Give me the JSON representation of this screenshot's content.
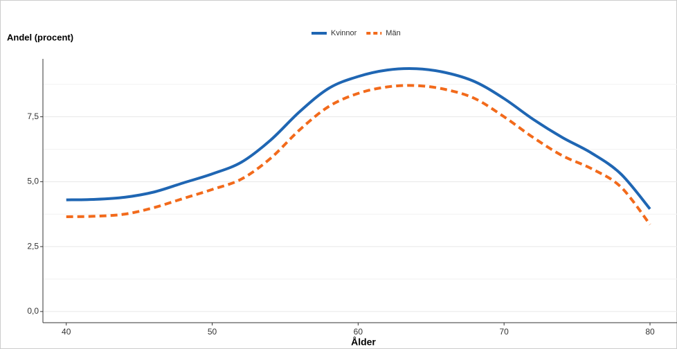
{
  "chart_data": {
    "type": "line",
    "y_label": "Andel (procent)",
    "x_label": "Ålder",
    "x": [
      40,
      42,
      44,
      46,
      48,
      50,
      52,
      54,
      56,
      58,
      60,
      62,
      64,
      66,
      68,
      70,
      72,
      74,
      76,
      78,
      80
    ],
    "series": [
      {
        "name": "Kvinnor",
        "color": "#1f66b3",
        "dash": "solid",
        "values": [
          4.3,
          4.32,
          4.4,
          4.6,
          4.95,
          5.3,
          5.75,
          6.6,
          7.7,
          8.6,
          9.05,
          9.3,
          9.35,
          9.2,
          8.85,
          8.2,
          7.4,
          6.7,
          6.1,
          5.3,
          3.95
        ]
      },
      {
        "name": "Män",
        "color": "#f26a1b",
        "dash": "dashed",
        "values": [
          3.65,
          3.67,
          3.75,
          4.0,
          4.35,
          4.7,
          5.1,
          5.9,
          7.0,
          7.9,
          8.4,
          8.65,
          8.7,
          8.55,
          8.2,
          7.5,
          6.7,
          6.0,
          5.5,
          4.8,
          3.35
        ]
      }
    ],
    "xlim": [
      38.4,
      81.85
    ],
    "ylim": [
      -0.43,
      9.73
    ],
    "xticks": [
      40,
      50,
      60,
      70,
      80
    ],
    "yticks": [
      {
        "value": 0,
        "label": "0,0"
      },
      {
        "value": 2.5,
        "label": "2,5"
      },
      {
        "value": 5,
        "label": "5,0"
      },
      {
        "value": 7.5,
        "label": "7,5"
      }
    ],
    "minor_grid_y": [
      1.25,
      3.75,
      6.25,
      8.75
    ],
    "grid": true,
    "legend": "top"
  }
}
